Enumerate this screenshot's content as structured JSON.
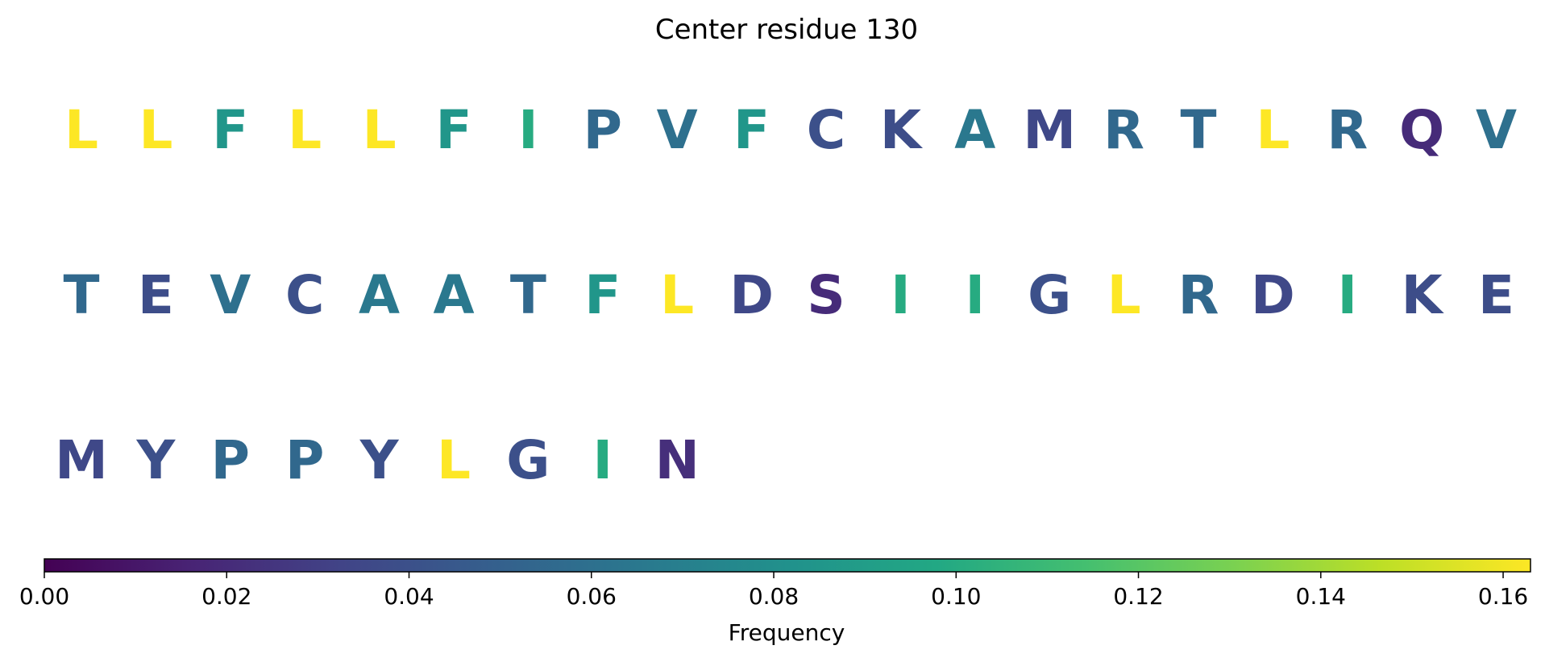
{
  "chart_data": {
    "type": "sequence-heatmap",
    "title": "Center residue 130",
    "residues": [
      {
        "aa": "L",
        "value": 0.163
      },
      {
        "aa": "L",
        "value": 0.163
      },
      {
        "aa": "F",
        "value": 0.085
      },
      {
        "aa": "L",
        "value": 0.163
      },
      {
        "aa": "L",
        "value": 0.163
      },
      {
        "aa": "F",
        "value": 0.085
      },
      {
        "aa": "I",
        "value": 0.1
      },
      {
        "aa": "P",
        "value": 0.055
      },
      {
        "aa": "V",
        "value": 0.06
      },
      {
        "aa": "F",
        "value": 0.085
      },
      {
        "aa": "C",
        "value": 0.04
      },
      {
        "aa": "K",
        "value": 0.038
      },
      {
        "aa": "A",
        "value": 0.065
      },
      {
        "aa": "M",
        "value": 0.035
      },
      {
        "aa": "R",
        "value": 0.055
      },
      {
        "aa": "T",
        "value": 0.055
      },
      {
        "aa": "L",
        "value": 0.163
      },
      {
        "aa": "R",
        "value": 0.055
      },
      {
        "aa": "Q",
        "value": 0.02
      },
      {
        "aa": "V",
        "value": 0.06
      },
      {
        "aa": "T",
        "value": 0.055
      },
      {
        "aa": "E",
        "value": 0.038
      },
      {
        "aa": "V",
        "value": 0.06
      },
      {
        "aa": "C",
        "value": 0.04
      },
      {
        "aa": "A",
        "value": 0.065
      },
      {
        "aa": "A",
        "value": 0.065
      },
      {
        "aa": "T",
        "value": 0.055
      },
      {
        "aa": "F",
        "value": 0.085
      },
      {
        "aa": "L",
        "value": 0.163
      },
      {
        "aa": "D",
        "value": 0.035
      },
      {
        "aa": "S",
        "value": 0.02
      },
      {
        "aa": "I",
        "value": 0.1
      },
      {
        "aa": "I",
        "value": 0.1
      },
      {
        "aa": "G",
        "value": 0.04
      },
      {
        "aa": "L",
        "value": 0.163
      },
      {
        "aa": "R",
        "value": 0.055
      },
      {
        "aa": "D",
        "value": 0.035
      },
      {
        "aa": "I",
        "value": 0.1
      },
      {
        "aa": "K",
        "value": 0.038
      },
      {
        "aa": "E",
        "value": 0.038
      },
      {
        "aa": "M",
        "value": 0.035
      },
      {
        "aa": "Y",
        "value": 0.04
      },
      {
        "aa": "P",
        "value": 0.055
      },
      {
        "aa": "P",
        "value": 0.055
      },
      {
        "aa": "Y",
        "value": 0.04
      },
      {
        "aa": "L",
        "value": 0.163
      },
      {
        "aa": "G",
        "value": 0.04
      },
      {
        "aa": "I",
        "value": 0.1
      },
      {
        "aa": "N",
        "value": 0.022
      }
    ],
    "per_row": 20,
    "colorbar": {
      "label": "Frequency",
      "range": [
        0,
        0.163
      ],
      "ticks": [
        0.0,
        0.02,
        0.04,
        0.06,
        0.08,
        0.1,
        0.12,
        0.14,
        0.16
      ],
      "tick_labels": [
        "0.00",
        "0.02",
        "0.04",
        "0.06",
        "0.08",
        "0.10",
        "0.12",
        "0.14",
        "0.16"
      ],
      "colormap": "viridis",
      "orientation": "horizontal",
      "placement": "bottom"
    }
  }
}
